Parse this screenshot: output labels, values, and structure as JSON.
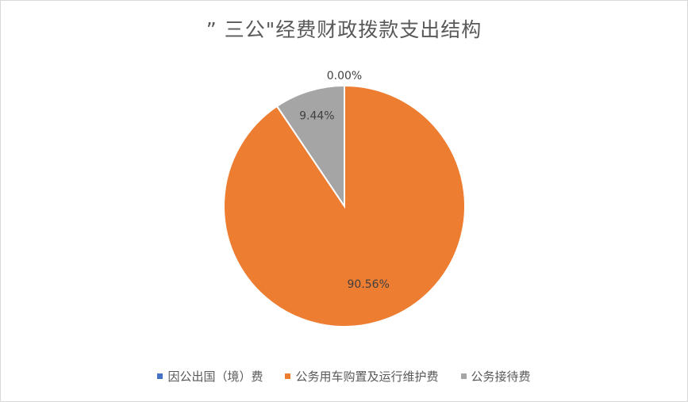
{
  "chart_data": {
    "type": "pie",
    "title": "” 三公\"经费财政拨款支出结构",
    "slices": [
      {
        "name": "因公出国（境）费",
        "value": 0.0,
        "label": "0.00%",
        "color": "#4472C4"
      },
      {
        "name": "公务用车购置及运行维护费",
        "value": 90.56,
        "label": "90.56%",
        "color": "#ED7D31"
      },
      {
        "name": "公务接待费",
        "value": 9.44,
        "label": "9.44%",
        "color": "#A5A5A5"
      }
    ],
    "legend_position": "bottom"
  }
}
